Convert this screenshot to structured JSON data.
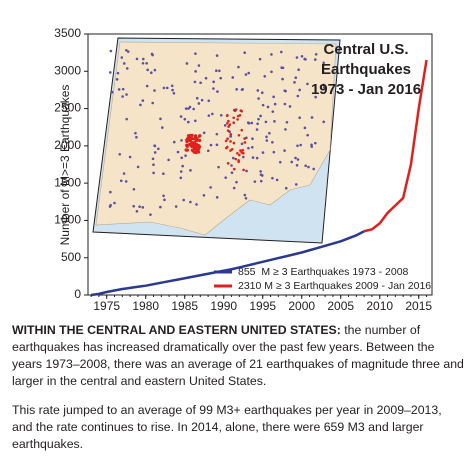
{
  "chart_data": {
    "type": "line",
    "title": [
      "Central U.S.",
      "Earthquakes",
      "1973 - Jan 2016"
    ],
    "y_label": "Number of M>=3 Earthquakes",
    "x": [
      1973,
      1974,
      1975,
      1976,
      1977,
      1978,
      1979,
      1980,
      1981,
      1982,
      1983,
      1984,
      1985,
      1986,
      1987,
      1988,
      1989,
      1990,
      1991,
      1992,
      1993,
      1994,
      1995,
      1996,
      1997,
      1998,
      1999,
      2000,
      2001,
      2002,
      2003,
      2004,
      2005,
      2006,
      2007,
      2008,
      2009,
      2010,
      2011,
      2012,
      2013,
      2014,
      2015,
      2016
    ],
    "series": [
      {
        "name": "855  M ≥ 3 Earthquakes 1973 - 2008",
        "color": "#2b3990",
        "values": [
          0,
          15,
          40,
          60,
          80,
          95,
          110,
          125,
          145,
          165,
          185,
          205,
          225,
          245,
          265,
          285,
          305,
          325,
          345,
          370,
          395,
          420,
          445,
          470,
          495,
          520,
          545,
          570,
          600,
          630,
          660,
          690,
          720,
          760,
          800,
          855,
          null,
          null,
          null,
          null,
          null,
          null,
          null,
          null
        ]
      },
      {
        "name": "2310 M ≥ 3 Earthquakes 2009 - Jan 2016",
        "color": "#e0201c",
        "values": [
          null,
          null,
          null,
          null,
          null,
          null,
          null,
          null,
          null,
          null,
          null,
          null,
          null,
          null,
          null,
          null,
          null,
          null,
          null,
          null,
          null,
          null,
          null,
          null,
          null,
          null,
          null,
          null,
          null,
          null,
          null,
          null,
          null,
          null,
          null,
          855,
          880,
          960,
          1100,
          1200,
          1300,
          1750,
          2500,
          3150
        ]
      }
    ],
    "xlim": [
      1972.6,
      2016.7
    ],
    "ylim": [
      0,
      3500
    ],
    "xticks": [
      1975,
      1980,
      1985,
      1990,
      1995,
      2000,
      2005,
      2010,
      2015
    ],
    "yticks": [
      0,
      500,
      1000,
      1500,
      2000,
      2500,
      3000,
      3500
    ],
    "legend": "lower right"
  },
  "notes": {
    "paragraphs": [
      {
        "lead": "WITHIN THE CENTRAL AND EASTERN UNITED STATES:",
        "text": " the number of earthquakes has increased dramatically over the past few years. Between the years 1973–2008, there was an average of 21 earthquakes of magnitude three and larger in the central and eastern United States."
      },
      {
        "text": "This rate jumped to an average of 99 M3+ earthquakes per year in 2009–2013, and the rate continues to rise. In 2014, alone, there were 659 M3 and larger earthquakes."
      }
    ]
  }
}
